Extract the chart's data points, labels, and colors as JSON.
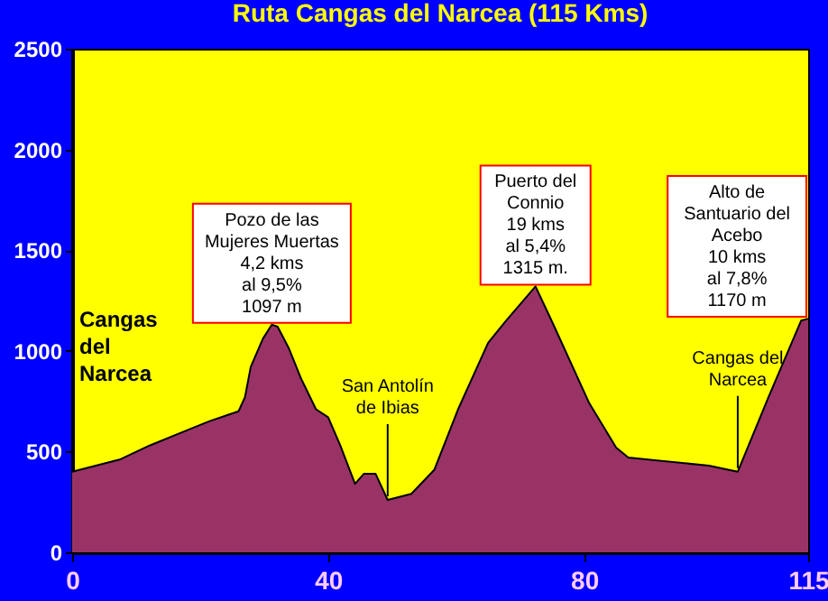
{
  "chart_data": {
    "type": "area",
    "title": "Ruta Cangas del Narcea (115 Kms)",
    "x": [
      0,
      7.4,
      12.1,
      16.7,
      21.4,
      26,
      27,
      27.9,
      29.8,
      31.2,
      32.1,
      33.9,
      35.8,
      38.1,
      40,
      41.9,
      44.2,
      45.6,
      47.4,
      49.3,
      53,
      56.6,
      60.3,
      65,
      67.8,
      72.4,
      75.2,
      80.8,
      85,
      86.9,
      99.5,
      104,
      108.8,
      113.9,
      115
    ],
    "series": [
      {
        "color": "#993366",
        "values": [
          400,
          460,
          530,
          590,
          650,
          700,
          770,
          920,
          1060,
          1130,
          1120,
          1010,
          860,
          710,
          670,
          530,
          340,
          390,
          390,
          260,
          290,
          410,
          710,
          1040,
          1150,
          1320,
          1130,
          740,
          520,
          470,
          430,
          400,
          770,
          1150,
          1160
        ]
      }
    ],
    "xlim": [
      0,
      115
    ],
    "xticks": [
      0,
      40,
      80,
      115
    ],
    "ylim": [
      0,
      2500
    ],
    "yticks": [
      0,
      500,
      1000,
      1500,
      2000,
      2500
    ],
    "grid": false,
    "annotations": [
      "Cangas\ndel\nNarcea",
      {
        "text": "Pozo de las\nMujeres Muertas\n4,2 kms\nal 9,5%\n1097 m",
        "x": 31.2,
        "y": 1130
      },
      {
        "text": "San Antolín\nde Ibias",
        "x": 49.3,
        "y": 260
      },
      {
        "text": "Puerto del\nConnio\n19 kms\nal 5,4%\n1315 m.",
        "x": 72.4,
        "y": 1320
      },
      {
        "text": "Cangas del\nNarcea",
        "x": 104,
        "y": 400
      },
      {
        "text": "Alto de\nSantuario del\nAcebo\n10 kms\nal 7,8%\n1170 m",
        "x": 115,
        "y": 1160
      }
    ]
  }
}
